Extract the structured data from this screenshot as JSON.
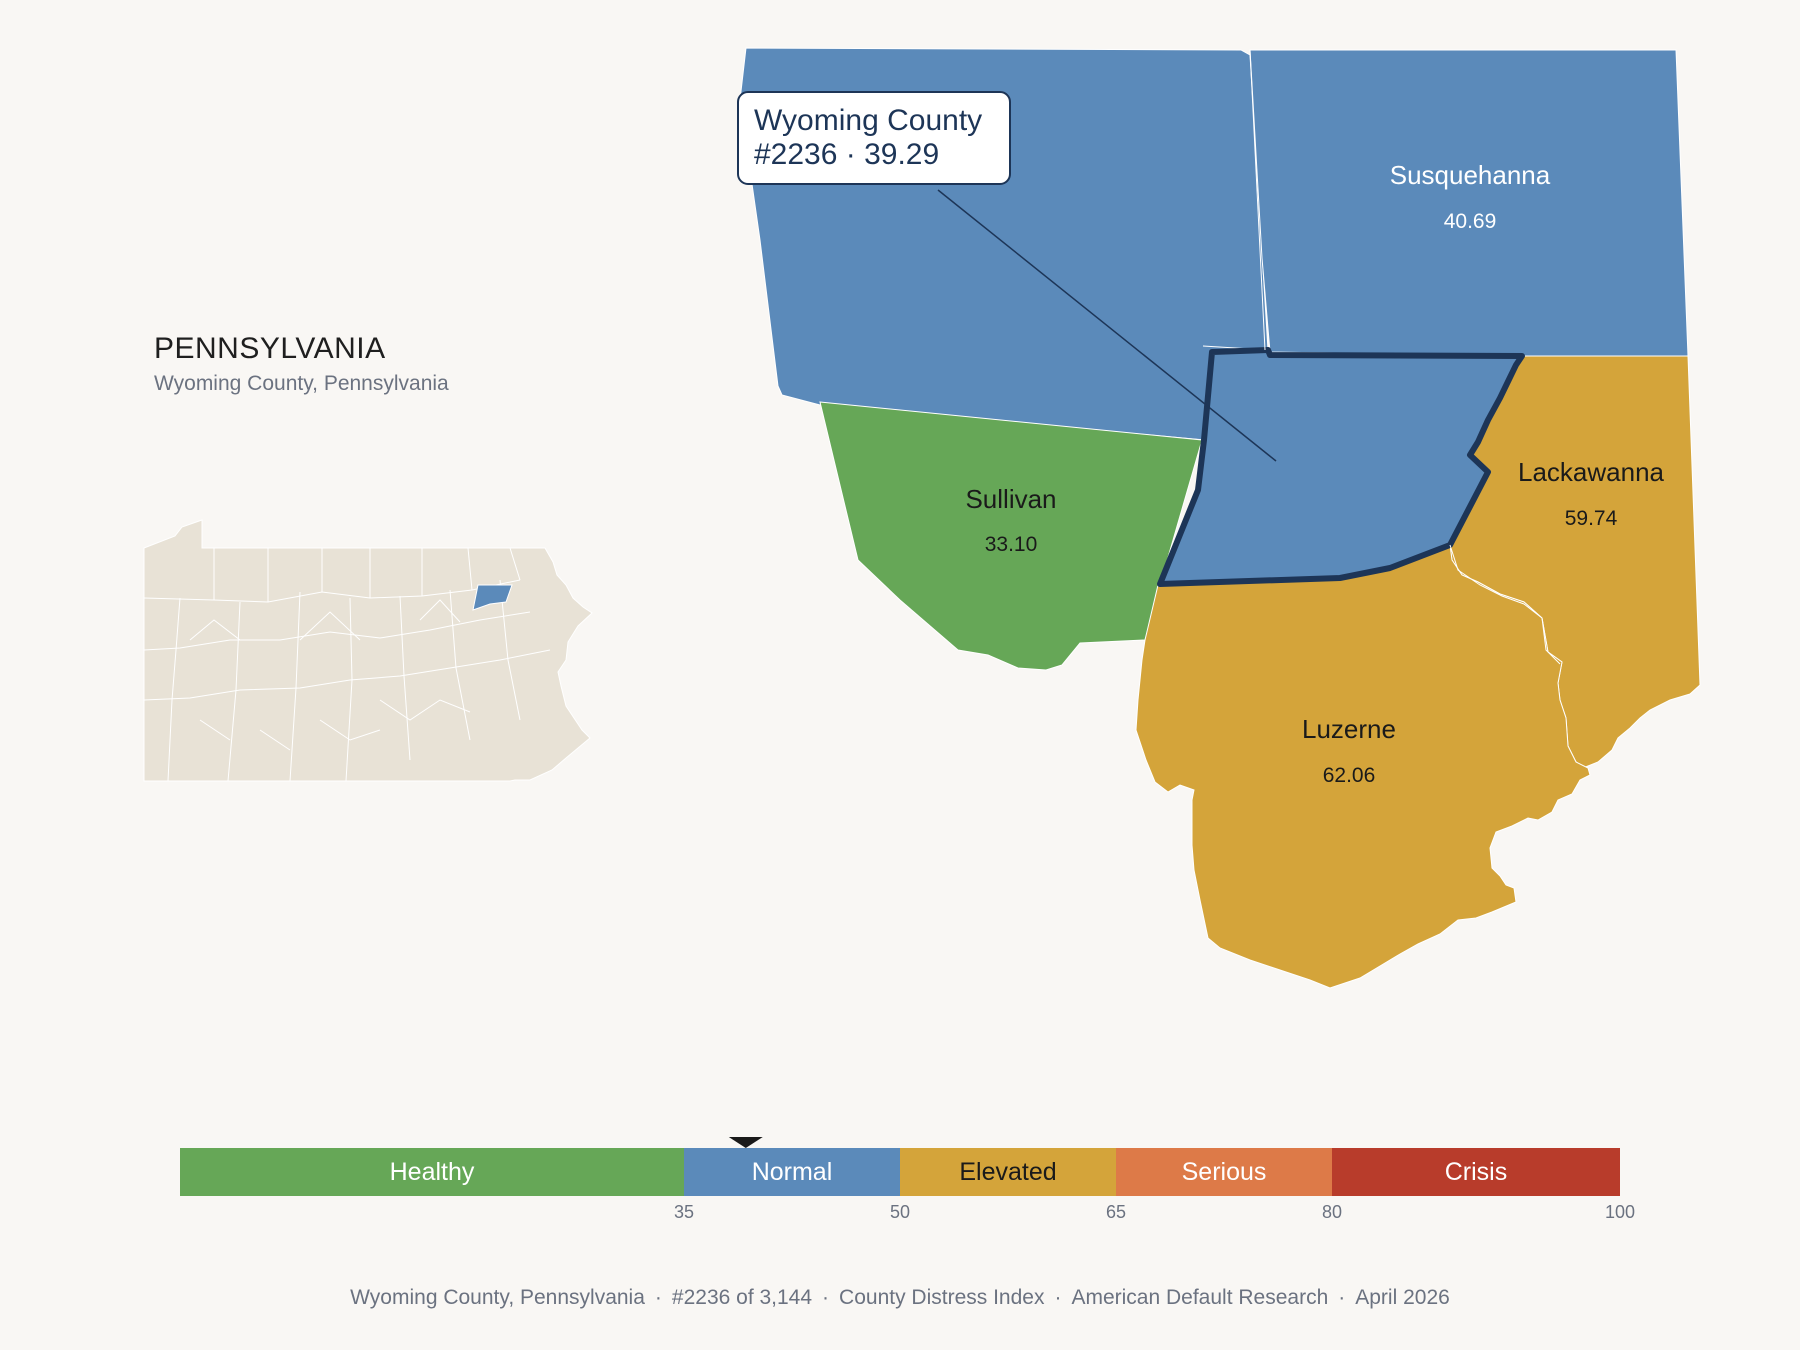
{
  "state": {
    "title": "PENNSYLVANIA",
    "subtitle": "Wyoming County, Pennsylvania"
  },
  "callout": {
    "line1": "Wyoming County",
    "line2": "#2236 · 39.29"
  },
  "counties": [
    {
      "id": "susquehanna",
      "name": "Susquehanna",
      "value": "40.69",
      "tier": "Normal"
    },
    {
      "id": "sullivan",
      "name": "Sullivan",
      "value": "33.10",
      "tier": "Healthy"
    },
    {
      "id": "lackawanna",
      "name": "Lackawanna",
      "value": "59.74",
      "tier": "Elevated"
    },
    {
      "id": "luzerne",
      "name": "Luzerne",
      "value": "62.06",
      "tier": "Elevated"
    },
    {
      "id": "wyoming",
      "name": "Wyoming County",
      "value": "39.29",
      "tier": "Normal",
      "selected": true
    }
  ],
  "legend": {
    "bands": [
      {
        "label": "Healthy",
        "from": 0,
        "to": 35,
        "color": "#66a757"
      },
      {
        "label": "Normal",
        "from": 35,
        "to": 50,
        "color": "#5b8aba"
      },
      {
        "label": "Elevated",
        "from": 50,
        "to": 65,
        "color": "#d4a43a"
      },
      {
        "label": "Serious",
        "from": 65,
        "to": 80,
        "color": "#dd7a48"
      },
      {
        "label": "Crisis",
        "from": 80,
        "to": 100,
        "color": "#b83c2b"
      }
    ],
    "ticks": [
      "35",
      "50",
      "65",
      "80",
      "100"
    ],
    "marker_value": 39.29
  },
  "colors": {
    "healthy": "#66a757",
    "normal": "#5b8aba",
    "elevated": "#d4a43a",
    "selected_outline": "#1d3557",
    "inset_land": "#e8e2d6"
  },
  "footer": {
    "county": "Wyoming County, Pennsylvania",
    "rank": "#2236 of 3,144",
    "index": "County Distress Index",
    "source": "American Default Research",
    "date": "April 2026"
  }
}
